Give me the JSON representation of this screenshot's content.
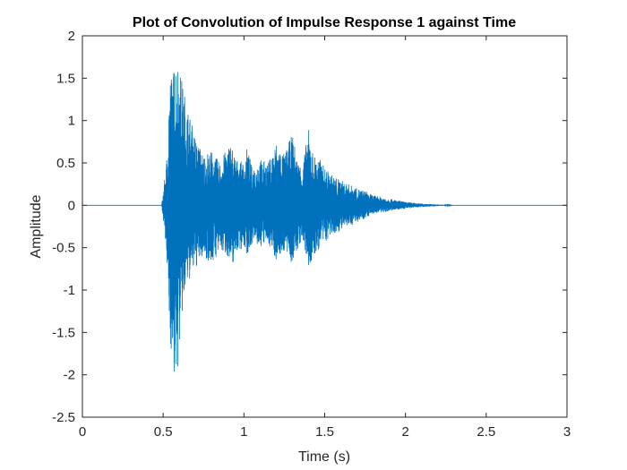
{
  "chart_data": {
    "type": "line",
    "title": "Plot of Convolution of Impulse Response 1 against Time",
    "xlabel": "Time (s)",
    "ylabel": "Amplitude",
    "xlim": [
      0,
      3
    ],
    "ylim": [
      -2.5,
      2
    ],
    "xticks": [
      0,
      0.5,
      1,
      1.5,
      2,
      2.5,
      3
    ],
    "xtick_labels": [
      "0",
      "0.5",
      "1",
      "1.5",
      "2",
      "2.5",
      "3"
    ],
    "yticks": [
      -2.5,
      -2,
      -1.5,
      -1,
      -0.5,
      0,
      0.5,
      1,
      1.5,
      2
    ],
    "ytick_labels": [
      "-2.5",
      "-2",
      "-1.5",
      "-1",
      "-0.5",
      "0",
      "0.5",
      "1",
      "1.5",
      "2"
    ],
    "grid": false,
    "series_color": "#0072BD",
    "series": [
      {
        "envelope": [
          {
            "t": 0.0,
            "max": 0.0,
            "min": 0.0
          },
          {
            "t": 0.49,
            "max": 0.0,
            "min": 0.0
          },
          {
            "t": 0.5,
            "max": 0.15,
            "min": -0.15
          },
          {
            "t": 0.52,
            "max": 0.5,
            "min": -0.6
          },
          {
            "t": 0.53,
            "max": 0.9,
            "min": -1.0
          },
          {
            "t": 0.54,
            "max": 1.6,
            "min": -1.5
          },
          {
            "t": 0.56,
            "max": 1.55,
            "min": -2.0
          },
          {
            "t": 0.58,
            "max": 1.8,
            "min": -2.2
          },
          {
            "t": 0.6,
            "max": 1.65,
            "min": -1.7
          },
          {
            "t": 0.62,
            "max": 1.45,
            "min": -1.3
          },
          {
            "t": 0.64,
            "max": 1.25,
            "min": -1.0
          },
          {
            "t": 0.66,
            "max": 1.1,
            "min": -0.9
          },
          {
            "t": 0.7,
            "max": 0.8,
            "min": -0.75
          },
          {
            "t": 0.75,
            "max": 0.6,
            "min": -0.6
          },
          {
            "t": 0.8,
            "max": 0.65,
            "min": -0.7
          },
          {
            "t": 0.85,
            "max": 0.5,
            "min": -0.55
          },
          {
            "t": 0.9,
            "max": 0.7,
            "min": -0.6
          },
          {
            "t": 0.92,
            "max": 0.75,
            "min": -0.8
          },
          {
            "t": 0.95,
            "max": 0.55,
            "min": -0.55
          },
          {
            "t": 1.0,
            "max": 0.5,
            "min": -0.5
          },
          {
            "t": 1.02,
            "max": 0.7,
            "min": -0.6
          },
          {
            "t": 1.05,
            "max": 0.45,
            "min": -0.45
          },
          {
            "t": 1.1,
            "max": 0.55,
            "min": -0.5
          },
          {
            "t": 1.15,
            "max": 0.5,
            "min": -0.45
          },
          {
            "t": 1.2,
            "max": 0.75,
            "min": -0.65
          },
          {
            "t": 1.25,
            "max": 0.6,
            "min": -0.55
          },
          {
            "t": 1.3,
            "max": 0.85,
            "min": -0.7
          },
          {
            "t": 1.33,
            "max": 0.55,
            "min": -0.55
          },
          {
            "t": 1.36,
            "max": 0.45,
            "min": -0.4
          },
          {
            "t": 1.4,
            "max": 0.9,
            "min": -0.75
          },
          {
            "t": 1.43,
            "max": 0.6,
            "min": -0.65
          },
          {
            "t": 1.47,
            "max": 0.55,
            "min": -0.5
          },
          {
            "t": 1.5,
            "max": 0.45,
            "min": -0.45
          },
          {
            "t": 1.55,
            "max": 0.35,
            "min": -0.35
          },
          {
            "t": 1.6,
            "max": 0.3,
            "min": -0.3
          },
          {
            "t": 1.65,
            "max": 0.25,
            "min": -0.25
          },
          {
            "t": 1.7,
            "max": 0.2,
            "min": -0.2
          },
          {
            "t": 1.75,
            "max": 0.17,
            "min": -0.15
          },
          {
            "t": 1.8,
            "max": 0.12,
            "min": -0.1
          },
          {
            "t": 1.9,
            "max": 0.08,
            "min": -0.07
          },
          {
            "t": 2.0,
            "max": 0.04,
            "min": -0.04
          },
          {
            "t": 2.1,
            "max": 0.02,
            "min": -0.02
          },
          {
            "t": 2.2,
            "max": 0.01,
            "min": -0.01
          },
          {
            "t": 2.3,
            "max": 0.0,
            "min": 0.0
          },
          {
            "t": 3.0,
            "max": 0.0,
            "min": 0.0
          }
        ]
      }
    ]
  }
}
